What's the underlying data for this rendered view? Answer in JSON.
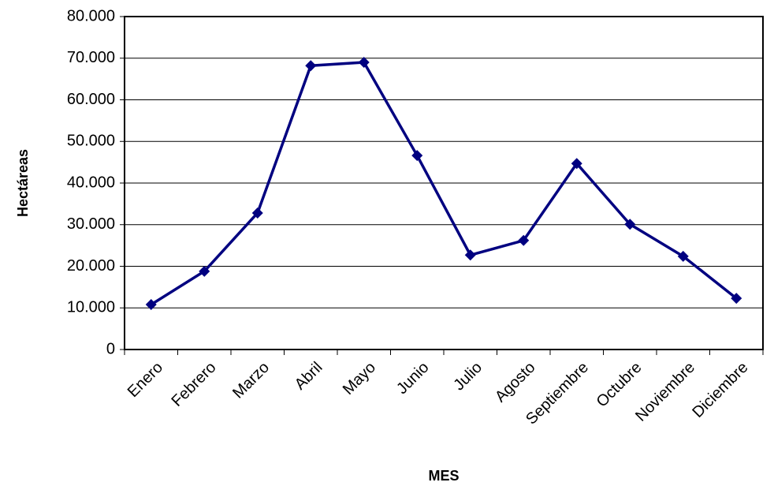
{
  "chart_data": {
    "type": "line",
    "y_label": "Hectáreas",
    "x_label": "MES",
    "categories": [
      "Enero",
      "Febrero",
      "Marzo",
      "Abril",
      "Mayo",
      "Junio",
      "Julio",
      "Agosto",
      "Septiembre",
      "Octubre",
      "Noviembre",
      "Diciembre"
    ],
    "values": [
      10800,
      18800,
      32800,
      68200,
      69000,
      46600,
      22700,
      26200,
      44700,
      30100,
      22400,
      12300
    ],
    "color": "#000080",
    "ylim": [
      0,
      80000
    ],
    "yticks": [
      0,
      {
        "value": 10000,
        "label": "10.000"
      },
      {
        "value": 20000,
        "label": "20.000"
      },
      {
        "value": 30000,
        "label": "30.000"
      },
      {
        "value": 40000,
        "label": "40.000"
      },
      {
        "value": 50000,
        "label": "50.000"
      },
      {
        "value": 60000,
        "label": "60.000"
      },
      {
        "value": 70000,
        "label": "70.000"
      },
      {
        "value": 80000,
        "label": "80.000"
      }
    ],
    "grid": true
  }
}
